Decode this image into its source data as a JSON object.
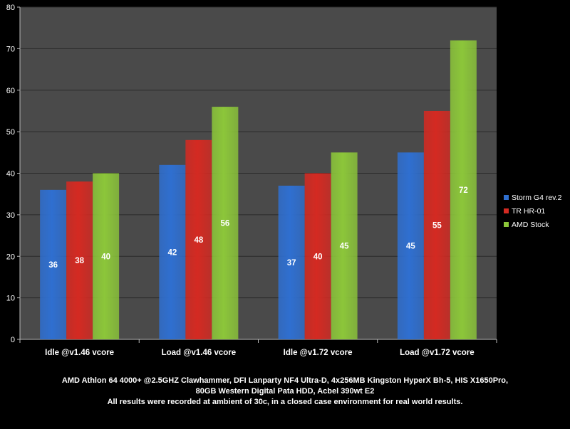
{
  "chart_data": {
    "type": "bar",
    "categories": [
      "Idle @v1.46 vcore",
      "Load @v1.46 vcore",
      "Idle @v1.72 vcore",
      "Load @v1.72 vcore"
    ],
    "series": [
      {
        "name": "Storm G4 rev.2",
        "values": [
          36,
          42,
          37,
          45
        ],
        "color": "#2f6fd0"
      },
      {
        "name": "TR HR-01",
        "values": [
          38,
          48,
          40,
          55
        ],
        "color": "#d42a22"
      },
      {
        "name": "AMD Stock",
        "values": [
          40,
          56,
          45,
          72
        ],
        "color": "#8cc63a"
      }
    ],
    "ylim": [
      0,
      80
    ],
    "yticks": [
      0,
      10,
      20,
      30,
      40,
      50,
      60,
      70,
      80
    ],
    "grid": true,
    "legend_position": "right",
    "data_labels": true,
    "plot_background": "#4a4a4a",
    "text_color": "#ffffff"
  },
  "caption": {
    "line1": "AMD Athlon 64 4000+ @2.5GHZ Clawhammer, DFI Lanparty NF4 Ultra-D, 4x256MB Kingston HyperX Bh-5, HIS X1650Pro,",
    "line2": "80GB Western Digital Pata HDD, Acbel 390wt E2",
    "line3": "All results were recorded at ambient of 30c, in a closed case environment for real world results."
  }
}
